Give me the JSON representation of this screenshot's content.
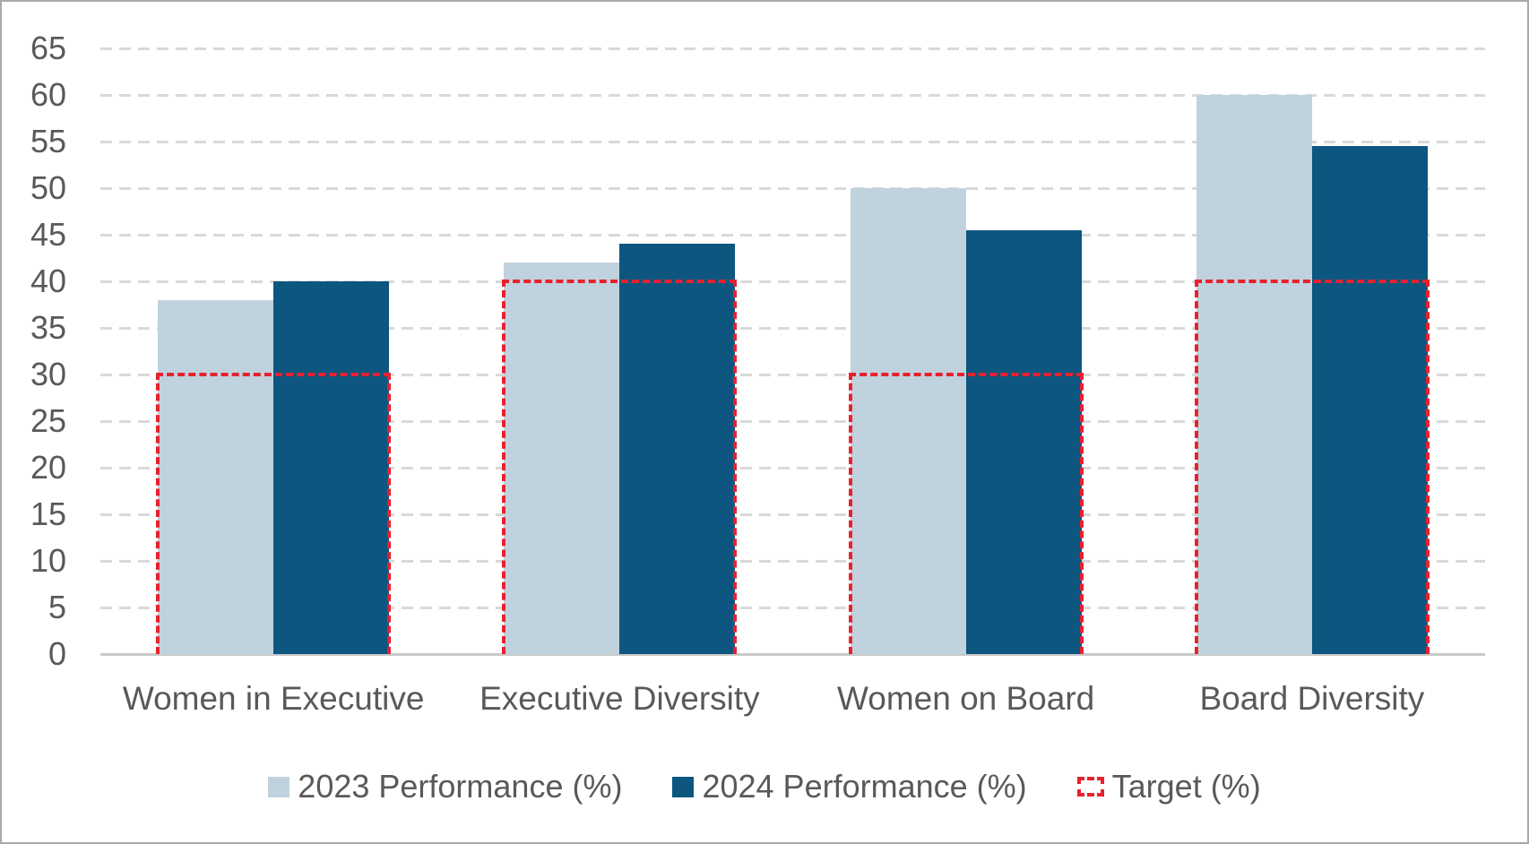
{
  "chart_data": {
    "type": "bar",
    "title": "",
    "categories": [
      "Women in Executive",
      "Executive Diversity",
      "Women on Board",
      "Board Diversity"
    ],
    "series": [
      {
        "name": "2023 Performance (%)",
        "style": "bar",
        "color": "#C0D2DD",
        "values": [
          38,
          42,
          50,
          60
        ]
      },
      {
        "name": "2024 Performance (%)",
        "style": "bar",
        "color": "#0C5680",
        "values": [
          40,
          44,
          45.5,
          54.5
        ]
      },
      {
        "name": "Target (%)",
        "style": "dashed-outline",
        "color": "#E8212E",
        "values": [
          30,
          40,
          30,
          40
        ]
      }
    ],
    "yticks": [
      0,
      5,
      10,
      15,
      20,
      25,
      30,
      35,
      40,
      45,
      50,
      55,
      60,
      65
    ],
    "ylim": [
      0,
      65
    ],
    "xlabel": "",
    "ylabel": "",
    "grid": "horizontal-dashed",
    "legend_position": "bottom"
  },
  "colors": {
    "grid": "#D9D9D9",
    "axis": "#C9C9C9",
    "text": "#595959",
    "background": "#FFFFFF",
    "frame_border": "#A9A9A9"
  }
}
